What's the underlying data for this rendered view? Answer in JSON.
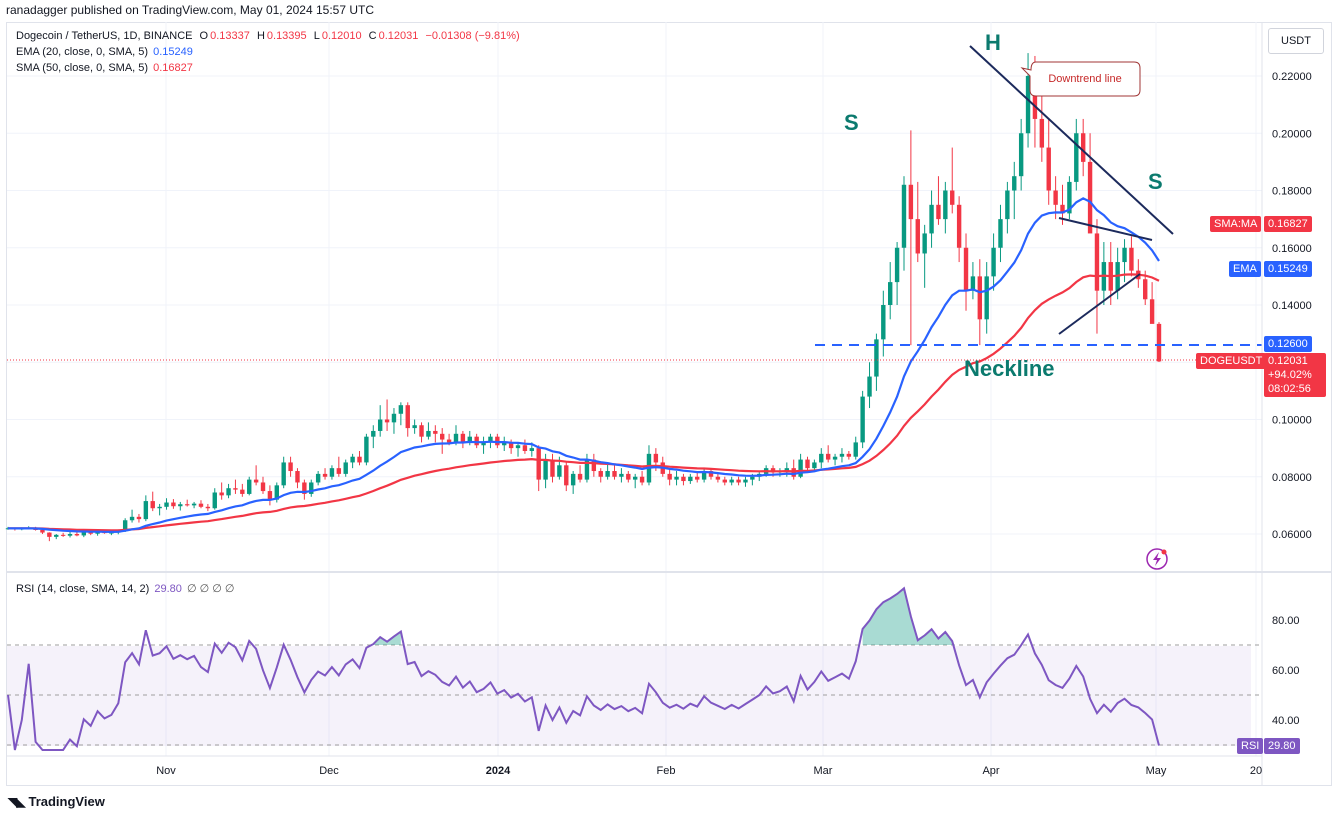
{
  "publisher": "ranadagger published on TradingView.com, May 01, 2024 15:57 UTC",
  "legend": {
    "symbol": "Dogecoin / TetherUS, 1D, BINANCE",
    "o_label": "O",
    "o": "0.13337",
    "h_label": "H",
    "h": "0.13395",
    "l_label": "L",
    "l": "0.12010",
    "c_label": "C",
    "c": "0.12031",
    "change": "−0.01308 (−9.81%)",
    "ema_label": "EMA (20, close, 0, SMA, 5)",
    "ema_value": "0.15249",
    "sma_label": "SMA (50, close, 0, SMA, 5)",
    "sma_value": "0.16827",
    "rsi_label": "RSI (14, close, SMA, 14, 2)",
    "rsi_value": "29.80",
    "rsi_extra": "∅ ∅ ∅ ∅"
  },
  "currency_button": "USDT",
  "tradingview_brand": "TradingView",
  "price_labels": {
    "sma_tag": "SMA:MA",
    "sma_value": "0.16827",
    "ema_tag": "EMA",
    "ema_value": "0.15249",
    "neckline_value": "0.12600",
    "symbol_tag": "DOGEUSDT",
    "last_price": "0.12031",
    "change_pct": "+94.02%",
    "countdown": "08:02:56",
    "rsi_tag": "RSI",
    "rsi_value": "29.80"
  },
  "colors": {
    "up": "#089981",
    "down": "#f23645",
    "ema": "#2962ff",
    "sma": "#f23645",
    "rsi": "#7e57c2",
    "annotation": "#1c2a5c",
    "neckline_text": "#0b7a6e"
  },
  "chart_data": [
    {
      "type": "candlestick",
      "title": "Dogecoin / TetherUS, 1D, BINANCE",
      "x_ticks": [
        "Nov",
        "Dec",
        "2024",
        "Feb",
        "Mar",
        "Apr",
        "May",
        "20"
      ],
      "y_ticks": [
        "0.22000",
        "0.20000",
        "0.18000",
        "0.16000",
        "0.14000",
        "0.12000",
        "0.10000",
        "0.08000",
        "0.06000"
      ],
      "ylim": [
        0.046,
        0.236
      ],
      "candles_ohlc": [
        [
          0.062,
          0.0625,
          0.0615,
          0.062
        ],
        [
          0.062,
          0.0622,
          0.0612,
          0.0617
        ],
        [
          0.0617,
          0.0623,
          0.0613,
          0.0619
        ],
        [
          0.0619,
          0.0627,
          0.0616,
          0.0622
        ],
        [
          0.0622,
          0.0625,
          0.0612,
          0.0614
        ],
        [
          0.0614,
          0.0621,
          0.06,
          0.0605
        ],
        [
          0.0605,
          0.0606,
          0.0575,
          0.059
        ],
        [
          0.059,
          0.06,
          0.0582,
          0.0597
        ],
        [
          0.0597,
          0.0604,
          0.059,
          0.0594
        ],
        [
          0.0594,
          0.0608,
          0.0588,
          0.06
        ],
        [
          0.06,
          0.0612,
          0.0592,
          0.0595
        ],
        [
          0.0595,
          0.0611,
          0.0589,
          0.0606
        ],
        [
          0.0606,
          0.0612,
          0.0596,
          0.0601
        ],
        [
          0.0601,
          0.0613,
          0.0594,
          0.0609
        ],
        [
          0.0609,
          0.0615,
          0.0601,
          0.0603
        ],
        [
          0.0603,
          0.0611,
          0.0596,
          0.0605
        ],
        [
          0.0605,
          0.0616,
          0.0599,
          0.0612
        ],
        [
          0.0612,
          0.0655,
          0.0607,
          0.0648
        ],
        [
          0.0648,
          0.0685,
          0.064,
          0.066
        ],
        [
          0.066,
          0.067,
          0.064,
          0.0652
        ],
        [
          0.0652,
          0.0735,
          0.0645,
          0.0715
        ],
        [
          0.0715,
          0.0748,
          0.068,
          0.069
        ],
        [
          0.069,
          0.0705,
          0.0665,
          0.0695
        ],
        [
          0.0695,
          0.0725,
          0.0685,
          0.071
        ],
        [
          0.071,
          0.0722,
          0.0688,
          0.0697
        ],
        [
          0.0697,
          0.0712,
          0.0682,
          0.0704
        ],
        [
          0.0704,
          0.072,
          0.0696,
          0.07
        ],
        [
          0.07,
          0.0712,
          0.069,
          0.0706
        ],
        [
          0.0706,
          0.0718,
          0.069,
          0.0695
        ],
        [
          0.0695,
          0.0705,
          0.068,
          0.069
        ],
        [
          0.069,
          0.076,
          0.0685,
          0.0745
        ],
        [
          0.0745,
          0.078,
          0.072,
          0.0735
        ],
        [
          0.0735,
          0.0775,
          0.0725,
          0.076
        ],
        [
          0.076,
          0.079,
          0.074,
          0.0755
        ],
        [
          0.0755,
          0.0775,
          0.073,
          0.074
        ],
        [
          0.074,
          0.08,
          0.0735,
          0.079
        ],
        [
          0.079,
          0.084,
          0.077,
          0.078
        ],
        [
          0.078,
          0.08,
          0.074,
          0.075
        ],
        [
          0.075,
          0.077,
          0.07,
          0.072
        ],
        [
          0.072,
          0.078,
          0.071,
          0.077
        ],
        [
          0.077,
          0.087,
          0.076,
          0.085
        ],
        [
          0.085,
          0.087,
          0.08,
          0.082
        ],
        [
          0.082,
          0.083,
          0.076,
          0.078
        ],
        [
          0.078,
          0.079,
          0.072,
          0.074
        ],
        [
          0.074,
          0.079,
          0.073,
          0.078
        ],
        [
          0.078,
          0.082,
          0.077,
          0.081
        ],
        [
          0.081,
          0.083,
          0.079,
          0.08
        ],
        [
          0.08,
          0.084,
          0.079,
          0.083
        ],
        [
          0.083,
          0.087,
          0.08,
          0.081
        ],
        [
          0.081,
          0.086,
          0.08,
          0.085
        ],
        [
          0.085,
          0.088,
          0.083,
          0.087
        ],
        [
          0.087,
          0.089,
          0.084,
          0.085
        ],
        [
          0.085,
          0.095,
          0.084,
          0.094
        ],
        [
          0.094,
          0.098,
          0.09,
          0.096
        ],
        [
          0.096,
          0.105,
          0.094,
          0.1
        ],
        [
          0.1,
          0.107,
          0.096,
          0.099
        ],
        [
          0.099,
          0.104,
          0.095,
          0.102
        ],
        [
          0.102,
          0.106,
          0.098,
          0.105
        ],
        [
          0.105,
          0.106,
          0.094,
          0.097
        ],
        [
          0.097,
          0.1,
          0.095,
          0.098
        ],
        [
          0.098,
          0.099,
          0.092,
          0.094
        ],
        [
          0.094,
          0.099,
          0.093,
          0.096
        ],
        [
          0.096,
          0.098,
          0.092,
          0.095
        ],
        [
          0.095,
          0.097,
          0.088,
          0.093
        ],
        [
          0.093,
          0.095,
          0.091,
          0.092
        ],
        [
          0.092,
          0.098,
          0.091,
          0.095
        ],
        [
          0.095,
          0.096,
          0.09,
          0.092
        ],
        [
          0.092,
          0.096,
          0.091,
          0.094
        ],
        [
          0.094,
          0.095,
          0.09,
          0.091
        ],
        [
          0.091,
          0.094,
          0.088,
          0.092
        ],
        [
          0.092,
          0.095,
          0.09,
          0.094
        ],
        [
          0.094,
          0.095,
          0.09,
          0.091
        ],
        [
          0.091,
          0.094,
          0.089,
          0.092
        ],
        [
          0.092,
          0.093,
          0.088,
          0.09
        ],
        [
          0.09,
          0.092,
          0.087,
          0.091
        ],
        [
          0.091,
          0.093,
          0.088,
          0.089
        ],
        [
          0.089,
          0.092,
          0.087,
          0.09
        ],
        [
          0.09,
          0.091,
          0.075,
          0.079
        ],
        [
          0.079,
          0.088,
          0.076,
          0.086
        ],
        [
          0.086,
          0.088,
          0.078,
          0.08
        ],
        [
          0.08,
          0.087,
          0.079,
          0.084
        ],
        [
          0.084,
          0.085,
          0.075,
          0.077
        ],
        [
          0.077,
          0.082,
          0.074,
          0.081
        ],
        [
          0.081,
          0.084,
          0.078,
          0.079
        ],
        [
          0.079,
          0.088,
          0.078,
          0.086
        ],
        [
          0.086,
          0.088,
          0.08,
          0.082
        ],
        [
          0.082,
          0.083,
          0.078,
          0.08
        ],
        [
          0.08,
          0.085,
          0.079,
          0.082
        ],
        [
          0.082,
          0.084,
          0.079,
          0.08
        ],
        [
          0.08,
          0.083,
          0.078,
          0.081
        ],
        [
          0.081,
          0.082,
          0.078,
          0.079
        ],
        [
          0.079,
          0.081,
          0.076,
          0.08
        ],
        [
          0.08,
          0.082,
          0.077,
          0.078
        ],
        [
          0.078,
          0.091,
          0.077,
          0.088
        ],
        [
          0.088,
          0.09,
          0.082,
          0.085
        ],
        [
          0.085,
          0.087,
          0.08,
          0.081
        ],
        [
          0.081,
          0.083,
          0.077,
          0.079
        ],
        [
          0.079,
          0.082,
          0.077,
          0.08
        ],
        [
          0.08,
          0.081,
          0.077,
          0.0785
        ],
        [
          0.0785,
          0.081,
          0.0775,
          0.08
        ],
        [
          0.08,
          0.0815,
          0.078,
          0.079
        ],
        [
          0.079,
          0.083,
          0.078,
          0.082
        ],
        [
          0.082,
          0.083,
          0.079,
          0.08
        ],
        [
          0.08,
          0.081,
          0.078,
          0.079
        ],
        [
          0.079,
          0.08,
          0.077,
          0.078
        ],
        [
          0.078,
          0.08,
          0.077,
          0.079
        ],
        [
          0.079,
          0.08,
          0.077,
          0.078
        ],
        [
          0.078,
          0.08,
          0.0765,
          0.079
        ],
        [
          0.079,
          0.081,
          0.077,
          0.08
        ],
        [
          0.08,
          0.082,
          0.0785,
          0.081
        ],
        [
          0.081,
          0.084,
          0.08,
          0.083
        ],
        [
          0.083,
          0.084,
          0.08,
          0.0815
        ],
        [
          0.0815,
          0.083,
          0.08,
          0.082
        ],
        [
          0.082,
          0.085,
          0.08,
          0.083
        ],
        [
          0.083,
          0.086,
          0.079,
          0.08
        ],
        [
          0.08,
          0.088,
          0.0795,
          0.086
        ],
        [
          0.086,
          0.087,
          0.082,
          0.083
        ],
        [
          0.083,
          0.086,
          0.082,
          0.085
        ],
        [
          0.085,
          0.09,
          0.083,
          0.088
        ],
        [
          0.088,
          0.091,
          0.085,
          0.086
        ],
        [
          0.086,
          0.088,
          0.084,
          0.087
        ],
        [
          0.087,
          0.09,
          0.085,
          0.088
        ],
        [
          0.088,
          0.089,
          0.086,
          0.087
        ],
        [
          0.087,
          0.094,
          0.086,
          0.092
        ],
        [
          0.092,
          0.11,
          0.09,
          0.108
        ],
        [
          0.108,
          0.12,
          0.104,
          0.115
        ],
        [
          0.115,
          0.13,
          0.11,
          0.128
        ],
        [
          0.128,
          0.145,
          0.122,
          0.14
        ],
        [
          0.14,
          0.155,
          0.135,
          0.148
        ],
        [
          0.148,
          0.162,
          0.14,
          0.16
        ],
        [
          0.16,
          0.185,
          0.152,
          0.182
        ],
        [
          0.182,
          0.201,
          0.126,
          0.17
        ],
        [
          0.17,
          0.183,
          0.155,
          0.158
        ],
        [
          0.158,
          0.168,
          0.146,
          0.165
        ],
        [
          0.165,
          0.18,
          0.16,
          0.175
        ],
        [
          0.175,
          0.185,
          0.168,
          0.17
        ],
        [
          0.17,
          0.183,
          0.165,
          0.18
        ],
        [
          0.18,
          0.195,
          0.172,
          0.175
        ],
        [
          0.175,
          0.178,
          0.155,
          0.16
        ],
        [
          0.16,
          0.165,
          0.138,
          0.145
        ],
        [
          0.145,
          0.155,
          0.142,
          0.15
        ],
        [
          0.15,
          0.156,
          0.126,
          0.135
        ],
        [
          0.135,
          0.155,
          0.13,
          0.15
        ],
        [
          0.15,
          0.165,
          0.145,
          0.16
        ],
        [
          0.16,
          0.175,
          0.155,
          0.17
        ],
        [
          0.17,
          0.183,
          0.165,
          0.18
        ],
        [
          0.18,
          0.19,
          0.17,
          0.185
        ],
        [
          0.185,
          0.205,
          0.18,
          0.2
        ],
        [
          0.2,
          0.228,
          0.195,
          0.22
        ],
        [
          0.22,
          0.227,
          0.195,
          0.205
        ],
        [
          0.205,
          0.22,
          0.19,
          0.195
        ],
        [
          0.195,
          0.205,
          0.175,
          0.18
        ],
        [
          0.18,
          0.185,
          0.17,
          0.175
        ],
        [
          0.175,
          0.182,
          0.168,
          0.172
        ],
        [
          0.172,
          0.185,
          0.17,
          0.183
        ],
        [
          0.183,
          0.205,
          0.18,
          0.2
        ],
        [
          0.2,
          0.205,
          0.185,
          0.19
        ],
        [
          0.19,
          0.2,
          0.17,
          0.165
        ],
        [
          0.165,
          0.17,
          0.13,
          0.145
        ],
        [
          0.145,
          0.162,
          0.14,
          0.155
        ],
        [
          0.155,
          0.162,
          0.14,
          0.145
        ],
        [
          0.145,
          0.16,
          0.142,
          0.155
        ],
        [
          0.155,
          0.163,
          0.148,
          0.16
        ],
        [
          0.16,
          0.164,
          0.15,
          0.152
        ],
        [
          0.152,
          0.156,
          0.146,
          0.149
        ],
        [
          0.149,
          0.152,
          0.14,
          0.142
        ],
        [
          0.142,
          0.148,
          0.138,
          0.1334
        ],
        [
          0.1334,
          0.134,
          0.1201,
          0.1203
        ]
      ]
    },
    {
      "type": "line",
      "title": "RSI (14, close, SMA, 14, 2)",
      "y_ticks": [
        "80.00",
        "60.00",
        "40.00"
      ],
      "ylim": [
        24,
        98
      ],
      "bands": [
        30,
        50,
        70
      ],
      "current_value": 29.8
    }
  ]
}
